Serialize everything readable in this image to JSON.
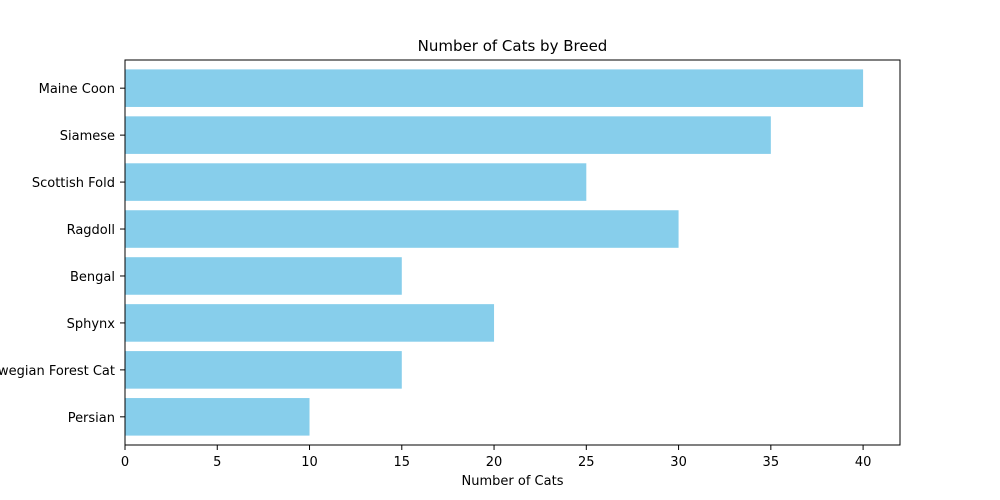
{
  "chart_data": {
    "type": "bar",
    "orientation": "horizontal",
    "title": "Number of Cats by Breed",
    "xlabel": "Number of Cats",
    "ylabel": "",
    "categories": [
      "Persian",
      "Norwegian Forest Cat",
      "Sphynx",
      "Bengal",
      "Ragdoll",
      "Scottish Fold",
      "Siamese",
      "Maine Coon"
    ],
    "values": [
      10,
      15,
      20,
      15,
      30,
      25,
      35,
      40
    ],
    "xlim": [
      0,
      42
    ],
    "xticks": [
      0,
      5,
      10,
      15,
      20,
      25,
      30,
      35,
      40
    ],
    "grid": false,
    "bar_color": "#87ceeb"
  }
}
